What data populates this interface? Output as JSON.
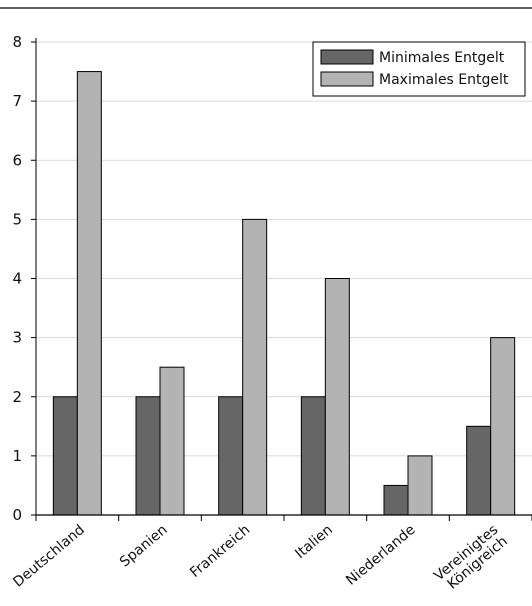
{
  "chart_data": {
    "type": "bar",
    "categories": [
      "Deutschland",
      "Spanien",
      "Frankreich",
      "Italien",
      "Niederlande",
      "Vereinigtes Königreich"
    ],
    "category_lines": [
      [
        "Deutschland"
      ],
      [
        "Spanien"
      ],
      [
        "Frankreich"
      ],
      [
        "Italien"
      ],
      [
        "Niederlande"
      ],
      [
        "Vereinigtes",
        "Königreich"
      ]
    ],
    "series": [
      {
        "name": "Minimales Entgelt",
        "values": [
          2,
          2,
          2,
          2,
          0.5,
          1.5
        ],
        "color": "#666666"
      },
      {
        "name": "Maximales Entgelt",
        "values": [
          7.5,
          2.5,
          5,
          4,
          1,
          3
        ],
        "color": "#b3b3b3"
      }
    ],
    "title": "",
    "xlabel": "",
    "ylabel": "",
    "ylim": [
      0,
      8
    ],
    "yticks": [
      0,
      1,
      2,
      3,
      4,
      5,
      6,
      7,
      8
    ],
    "grid": true,
    "legend_position": "top-right"
  }
}
